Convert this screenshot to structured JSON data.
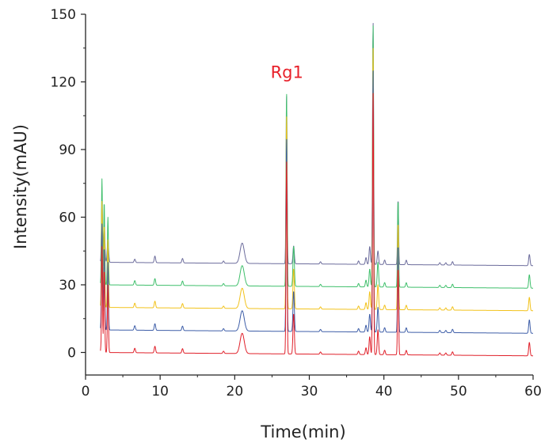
{
  "chart_data": {
    "type": "line",
    "title": "",
    "xlabel": "Time(min)",
    "ylabel": "Intensity(mAU)",
    "xlim": [
      0,
      60
    ],
    "ylim": [
      -10,
      150
    ],
    "xticks": [
      0,
      10,
      20,
      30,
      40,
      50,
      60
    ],
    "yticks": [
      0,
      30,
      60,
      90,
      120,
      150
    ],
    "grid": false,
    "legend": "none",
    "annotations": [
      {
        "text": "Rg1",
        "x": 27.0,
        "y": 120,
        "color": "#e8202a"
      }
    ],
    "series": [
      {
        "color": "#e0202a",
        "baseline_start": 0,
        "baseline_end": -1.5,
        "dip": {
          "x": 2.1,
          "y": -7
        },
        "peaks": [
          [
            2.2,
            47
          ],
          [
            2.5,
            37
          ],
          [
            3.0,
            30
          ],
          [
            6.6,
            2
          ],
          [
            9.3,
            3
          ],
          [
            13.0,
            2
          ],
          [
            18.5,
            1
          ],
          [
            21.0,
            9
          ],
          [
            26.95,
            86
          ],
          [
            27.9,
            18
          ],
          [
            31.5,
            1
          ],
          [
            36.6,
            1.5
          ],
          [
            37.6,
            3
          ],
          [
            38.1,
            8
          ],
          [
            38.55,
            117
          ],
          [
            39.2,
            11
          ],
          [
            40.1,
            2
          ],
          [
            41.9,
            39
          ],
          [
            43.0,
            2
          ],
          [
            47.5,
            1
          ],
          [
            48.3,
            1
          ],
          [
            49.2,
            1.5
          ],
          [
            59.5,
            6
          ]
        ]
      },
      {
        "color": "#3e5ea8",
        "baseline_start": 10,
        "baseline_end": 8.5,
        "peaks": [
          [
            2.2,
            47
          ],
          [
            2.5,
            37
          ],
          [
            3.0,
            30
          ],
          [
            6.6,
            2
          ],
          [
            9.3,
            3
          ],
          [
            13.0,
            2
          ],
          [
            18.5,
            1
          ],
          [
            21.0,
            9
          ],
          [
            26.95,
            86
          ],
          [
            27.9,
            18
          ],
          [
            31.5,
            1
          ],
          [
            36.6,
            1.5
          ],
          [
            37.6,
            3
          ],
          [
            38.1,
            8
          ],
          [
            38.55,
            117
          ],
          [
            39.2,
            11
          ],
          [
            40.1,
            2
          ],
          [
            41.9,
            39
          ],
          [
            43.0,
            2
          ],
          [
            47.5,
            1
          ],
          [
            48.3,
            1
          ],
          [
            49.2,
            1.5
          ],
          [
            59.5,
            6
          ]
        ]
      },
      {
        "color": "#f2c21b",
        "baseline_start": 20,
        "baseline_end": 18.5,
        "peaks": [
          [
            2.2,
            47
          ],
          [
            2.5,
            37
          ],
          [
            3.0,
            30
          ],
          [
            6.6,
            2
          ],
          [
            9.3,
            3
          ],
          [
            13.0,
            2
          ],
          [
            18.5,
            1
          ],
          [
            21.0,
            9
          ],
          [
            26.95,
            86
          ],
          [
            27.9,
            18
          ],
          [
            31.5,
            1
          ],
          [
            36.6,
            1.5
          ],
          [
            37.6,
            3
          ],
          [
            38.1,
            8
          ],
          [
            38.55,
            117
          ],
          [
            39.2,
            11
          ],
          [
            40.1,
            2
          ],
          [
            41.9,
            39
          ],
          [
            43.0,
            2
          ],
          [
            47.5,
            1
          ],
          [
            48.3,
            1
          ],
          [
            49.2,
            1.5
          ],
          [
            59.5,
            6
          ]
        ]
      },
      {
        "color": "#3fbf6b",
        "baseline_start": 30,
        "baseline_end": 28.5,
        "peaks": [
          [
            2.2,
            47
          ],
          [
            2.5,
            37
          ],
          [
            3.0,
            30
          ],
          [
            6.6,
            2
          ],
          [
            9.3,
            3
          ],
          [
            13.0,
            2
          ],
          [
            18.5,
            1
          ],
          [
            21.0,
            9
          ],
          [
            26.95,
            86
          ],
          [
            27.9,
            18
          ],
          [
            31.5,
            1
          ],
          [
            36.6,
            1.5
          ],
          [
            37.6,
            3
          ],
          [
            38.1,
            8
          ],
          [
            38.55,
            117
          ],
          [
            39.2,
            11
          ],
          [
            40.1,
            2
          ],
          [
            41.9,
            39
          ],
          [
            43.0,
            2
          ],
          [
            47.5,
            1
          ],
          [
            48.3,
            1
          ],
          [
            49.2,
            1.5
          ],
          [
            59.5,
            6
          ]
        ]
      },
      {
        "color": "#6c6c9c",
        "baseline_start": 40,
        "baseline_end": 38.5,
        "peaks": [
          [
            2.2,
            27
          ],
          [
            2.5,
            17
          ],
          [
            3.0,
            10
          ],
          [
            6.6,
            1.5
          ],
          [
            9.3,
            3
          ],
          [
            13.0,
            2
          ],
          [
            18.5,
            1
          ],
          [
            21.0,
            9
          ],
          [
            26.95,
            75
          ],
          [
            27.9,
            8
          ],
          [
            31.5,
            1
          ],
          [
            36.6,
            1.5
          ],
          [
            37.6,
            3
          ],
          [
            38.1,
            8
          ],
          [
            38.55,
            108
          ],
          [
            39.2,
            6
          ],
          [
            40.1,
            2
          ],
          [
            41.9,
            29
          ],
          [
            43.0,
            2
          ],
          [
            47.5,
            1
          ],
          [
            48.3,
            1
          ],
          [
            49.2,
            1.5
          ],
          [
            59.5,
            5
          ]
        ]
      }
    ]
  }
}
